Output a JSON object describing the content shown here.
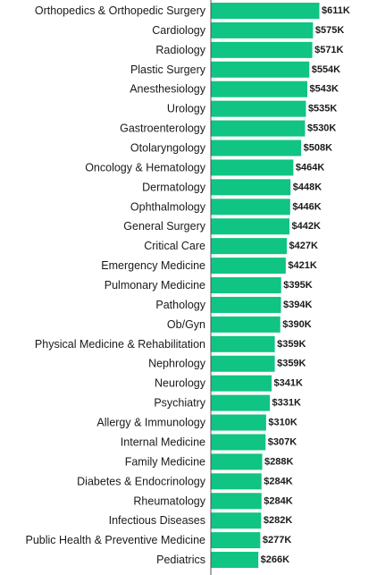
{
  "chart_data": {
    "type": "bar",
    "orientation": "horizontal",
    "title": "",
    "xlabel": "",
    "ylabel": "",
    "bar_color": "#10c483",
    "value_prefix": "$",
    "value_suffix": "K",
    "xlim": [
      0,
      611
    ],
    "grid": false,
    "categories": [
      "Orthopedics & Orthopedic Surgery",
      "Cardiology",
      "Radiology",
      "Plastic Surgery",
      "Anesthesiology",
      "Urology",
      "Gastroenterology",
      "Otolaryngology",
      "Oncology & Hematology",
      "Dermatology",
      "Ophthalmology",
      "General Surgery",
      "Critical Care",
      "Emergency Medicine",
      "Pulmonary Medicine",
      "Pathology",
      "Ob/Gyn",
      "Physical Medicine & Rehabilitation",
      "Nephrology",
      "Neurology",
      "Psychiatry",
      "Allergy & Immunology",
      "Internal Medicine",
      "Family Medicine",
      "Diabetes & Endocrinology",
      "Rheumatology",
      "Infectious Diseases",
      "Public Health & Preventive Medicine",
      "Pediatrics"
    ],
    "values": [
      611,
      575,
      571,
      554,
      543,
      535,
      530,
      508,
      464,
      448,
      446,
      442,
      427,
      421,
      395,
      394,
      390,
      359,
      359,
      341,
      331,
      310,
      307,
      288,
      284,
      284,
      282,
      277,
      266
    ],
    "value_labels": [
      "$611K",
      "$575K",
      "$571K",
      "$554K",
      "$543K",
      "$535K",
      "$530K",
      "$508K",
      "$464K",
      "$448K",
      "$446K",
      "$442K",
      "$427K",
      "$421K",
      "$395K",
      "$394K",
      "$390K",
      "$359K",
      "$359K",
      "$341K",
      "$331K",
      "$310K",
      "$307K",
      "$288K",
      "$284K",
      "$284K",
      "$282K",
      "$277K",
      "$266K"
    ]
  }
}
